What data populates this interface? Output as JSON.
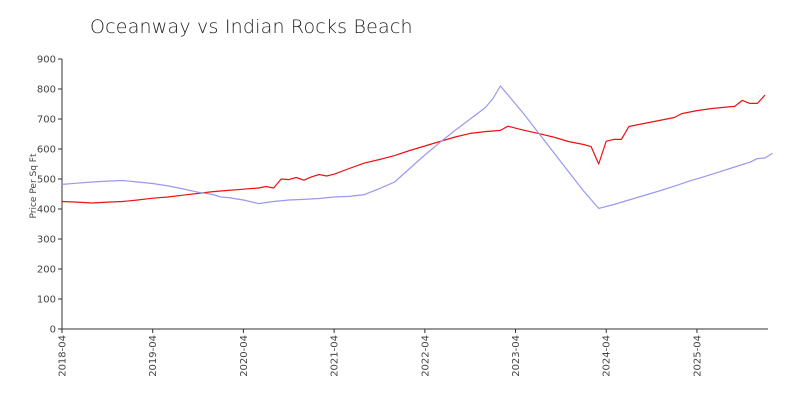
{
  "chart_data": {
    "type": "line",
    "title": "Oceanway vs Indian Rocks Beach",
    "xlabel": "",
    "ylabel": "Price Per Sq Ft",
    "ylim": [
      0,
      900
    ],
    "yticks": [
      0,
      100,
      200,
      300,
      400,
      500,
      600,
      700,
      800,
      900
    ],
    "xlim": [
      "2018-04",
      "2025-12"
    ],
    "xticks": [
      "2018-04",
      "2019-04",
      "2020-04",
      "2021-04",
      "2022-04",
      "2023-04",
      "2024-04",
      "2025-04"
    ],
    "grid": false,
    "legend": "none",
    "series": [
      {
        "color": "#ee1111",
        "points": [
          [
            "2018-04",
            425
          ],
          [
            "2018-06",
            423
          ],
          [
            "2018-08",
            420
          ],
          [
            "2018-10",
            423
          ],
          [
            "2018-12",
            425
          ],
          [
            "2019-02",
            430
          ],
          [
            "2019-04",
            436
          ],
          [
            "2019-06",
            440
          ],
          [
            "2019-08",
            446
          ],
          [
            "2019-10",
            452
          ],
          [
            "2019-12",
            458
          ],
          [
            "2020-02",
            462
          ],
          [
            "2020-04",
            466
          ],
          [
            "2020-06",
            470
          ],
          [
            "2020-07",
            475
          ],
          [
            "2020-08",
            470
          ],
          [
            "2020-09",
            500
          ],
          [
            "2020-10",
            498
          ],
          [
            "2020-11",
            505
          ],
          [
            "2020-12",
            496
          ],
          [
            "2021-01",
            507
          ],
          [
            "2021-02",
            515
          ],
          [
            "2021-03",
            510
          ],
          [
            "2021-04",
            516
          ],
          [
            "2021-06",
            535
          ],
          [
            "2021-08",
            553
          ],
          [
            "2021-10",
            565
          ],
          [
            "2021-12",
            578
          ],
          [
            "2022-02",
            595
          ],
          [
            "2022-04",
            610
          ],
          [
            "2022-06",
            625
          ],
          [
            "2022-08",
            640
          ],
          [
            "2022-10",
            652
          ],
          [
            "2022-12",
            658
          ],
          [
            "2023-02",
            662
          ],
          [
            "2023-03",
            676
          ],
          [
            "2023-05",
            663
          ],
          [
            "2023-07",
            652
          ],
          [
            "2023-09",
            640
          ],
          [
            "2023-11",
            625
          ],
          [
            "2024-01",
            615
          ],
          [
            "2024-02",
            608
          ],
          [
            "2024-03",
            550
          ],
          [
            "2024-04",
            626
          ],
          [
            "2024-05",
            632
          ],
          [
            "2024-06",
            632
          ],
          [
            "2024-07",
            675
          ],
          [
            "2024-09",
            685
          ],
          [
            "2024-11",
            695
          ],
          [
            "2025-01",
            705
          ],
          [
            "2025-02",
            718
          ],
          [
            "2025-04",
            728
          ],
          [
            "2025-06",
            735
          ],
          [
            "2025-08",
            740
          ],
          [
            "2025-09",
            742
          ],
          [
            "2025-10",
            762
          ],
          [
            "2025-11",
            752
          ],
          [
            "2025-12",
            752
          ],
          [
            "2026-01",
            780
          ]
        ]
      },
      {
        "color": "#9999ee",
        "points": [
          [
            "2018-04",
            482
          ],
          [
            "2018-06",
            486
          ],
          [
            "2018-08",
            490
          ],
          [
            "2018-10",
            493
          ],
          [
            "2018-12",
            495
          ],
          [
            "2019-02",
            490
          ],
          [
            "2019-04",
            485
          ],
          [
            "2019-06",
            477
          ],
          [
            "2019-08",
            467
          ],
          [
            "2019-10",
            456
          ],
          [
            "2019-12",
            448
          ],
          [
            "2020-01",
            440
          ],
          [
            "2020-02",
            438
          ],
          [
            "2020-04",
            430
          ],
          [
            "2020-06",
            418
          ],
          [
            "2020-08",
            425
          ],
          [
            "2020-10",
            430
          ],
          [
            "2020-12",
            432
          ],
          [
            "2021-02",
            435
          ],
          [
            "2021-04",
            440
          ],
          [
            "2021-06",
            442
          ],
          [
            "2021-08",
            448
          ],
          [
            "2021-10",
            468
          ],
          [
            "2021-12",
            490
          ],
          [
            "2022-02",
            535
          ],
          [
            "2022-04",
            580
          ],
          [
            "2022-06",
            622
          ],
          [
            "2022-08",
            662
          ],
          [
            "2022-10",
            700
          ],
          [
            "2022-12",
            738
          ],
          [
            "2023-01",
            768
          ],
          [
            "2023-02",
            810
          ],
          [
            "2023-03",
            780
          ],
          [
            "2023-05",
            720
          ],
          [
            "2023-07",
            655
          ],
          [
            "2023-09",
            590
          ],
          [
            "2023-11",
            525
          ],
          [
            "2024-01",
            460
          ],
          [
            "2024-03",
            402
          ],
          [
            "2024-05",
            415
          ],
          [
            "2024-07",
            430
          ],
          [
            "2024-09",
            445
          ],
          [
            "2024-11",
            460
          ],
          [
            "2025-01",
            476
          ],
          [
            "2025-03",
            493
          ],
          [
            "2025-05",
            508
          ],
          [
            "2025-07",
            524
          ],
          [
            "2025-09",
            540
          ],
          [
            "2025-11",
            556
          ],
          [
            "2025-12",
            568
          ],
          [
            "2026-01",
            570
          ],
          [
            "2026-02",
            586
          ]
        ]
      }
    ]
  }
}
